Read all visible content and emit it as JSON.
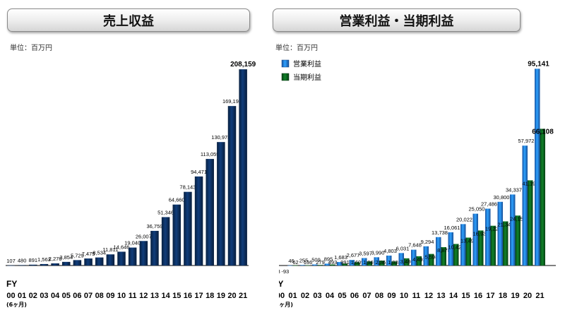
{
  "fiscal_year_label": "FY",
  "partial_year_note": "(6ヶ月)",
  "chart_data": [
    {
      "type": "bar",
      "title": "売上収益",
      "unit": "単位：百万円",
      "x_prefix": "FY",
      "categories": [
        "00",
        "01",
        "02",
        "03",
        "04",
        "05",
        "06",
        "07",
        "08",
        "09",
        "10",
        "11",
        "12",
        "13",
        "14",
        "15",
        "16",
        "17",
        "18",
        "19",
        "20",
        "21"
      ],
      "series": [
        {
          "values": [
            107,
            480,
            891,
            1563,
            2276,
            3854,
            5729,
            7475,
            8534,
            11811,
            14646,
            19040,
            26007,
            36759,
            51346,
            64660,
            78143,
            94471,
            113059,
            130978,
            169193,
            208159
          ],
          "labels": [
            "107",
            "480",
            "891",
            "1,563",
            "2,276",
            "3,854",
            "5,729",
            "7,475",
            "8,534",
            "11,811",
            "14,646",
            "19,040",
            "26,007",
            "36,759",
            "51,346",
            "64,660",
            "78,143",
            "94,471",
            "113,059",
            "130,978",
            "169,193",
            "208,159"
          ],
          "color": "#0b2a55"
        }
      ],
      "ylim": [
        0,
        215000
      ],
      "grid": false,
      "legend": "none"
    },
    {
      "type": "bar",
      "title": "営業利益・当期利益",
      "unit": "単位：百万円",
      "x_prefix": "FY",
      "categories": [
        "00",
        "01",
        "02",
        "03",
        "04",
        "05",
        "06",
        "07",
        "08",
        "09",
        "10",
        "11",
        "12",
        "13",
        "14",
        "15",
        "16",
        "17",
        "18",
        "19",
        "20",
        "21"
      ],
      "series": [
        {
          "name": "営業利益",
          "values": [
            -93,
            46,
            255,
            509,
            895,
            1683,
            2677,
            3597,
            3990,
            4803,
            6031,
            7648,
            9294,
            13738,
            16061,
            20022,
            25050,
            27486,
            30800,
            34337,
            57972,
            95141
          ],
          "labels": [
            "-93",
            "46",
            "255",
            "509",
            "895",
            "1,683",
            "2,677",
            "3,597",
            "3,990",
            "4,803",
            "6,031",
            "7,648",
            "9,294",
            "13,738",
            "16,061",
            "20,022",
            "25,050",
            "27,486",
            "30,800",
            "34,337",
            "57,972",
            "95,141"
          ],
          "color": "#1f6fd6"
        },
        {
          "name": "当期利益",
          "values": [
            -93,
            62,
            136,
            279,
            493,
            991,
            1609,
            1965,
            2363,
            1938,
            3486,
            4492,
            5598,
            8878,
            10428,
            13493,
            16938,
            19225,
            21346,
            24153,
            41198,
            66108
          ],
          "labels": [
            "-93",
            "62",
            "136",
            "279",
            "493",
            "991",
            "1,609",
            "1,965",
            "2,363",
            "1,938",
            "3,486",
            "4,492",
            "5,598",
            "8,878",
            "10,428",
            "13,493",
            "16,938",
            "19,225",
            "21,346",
            "24,153",
            "41,198",
            "66,108"
          ],
          "color": "#0b5a1c"
        }
      ],
      "ylim": [
        0,
        98000
      ],
      "grid": false,
      "legend": "top-left"
    }
  ]
}
